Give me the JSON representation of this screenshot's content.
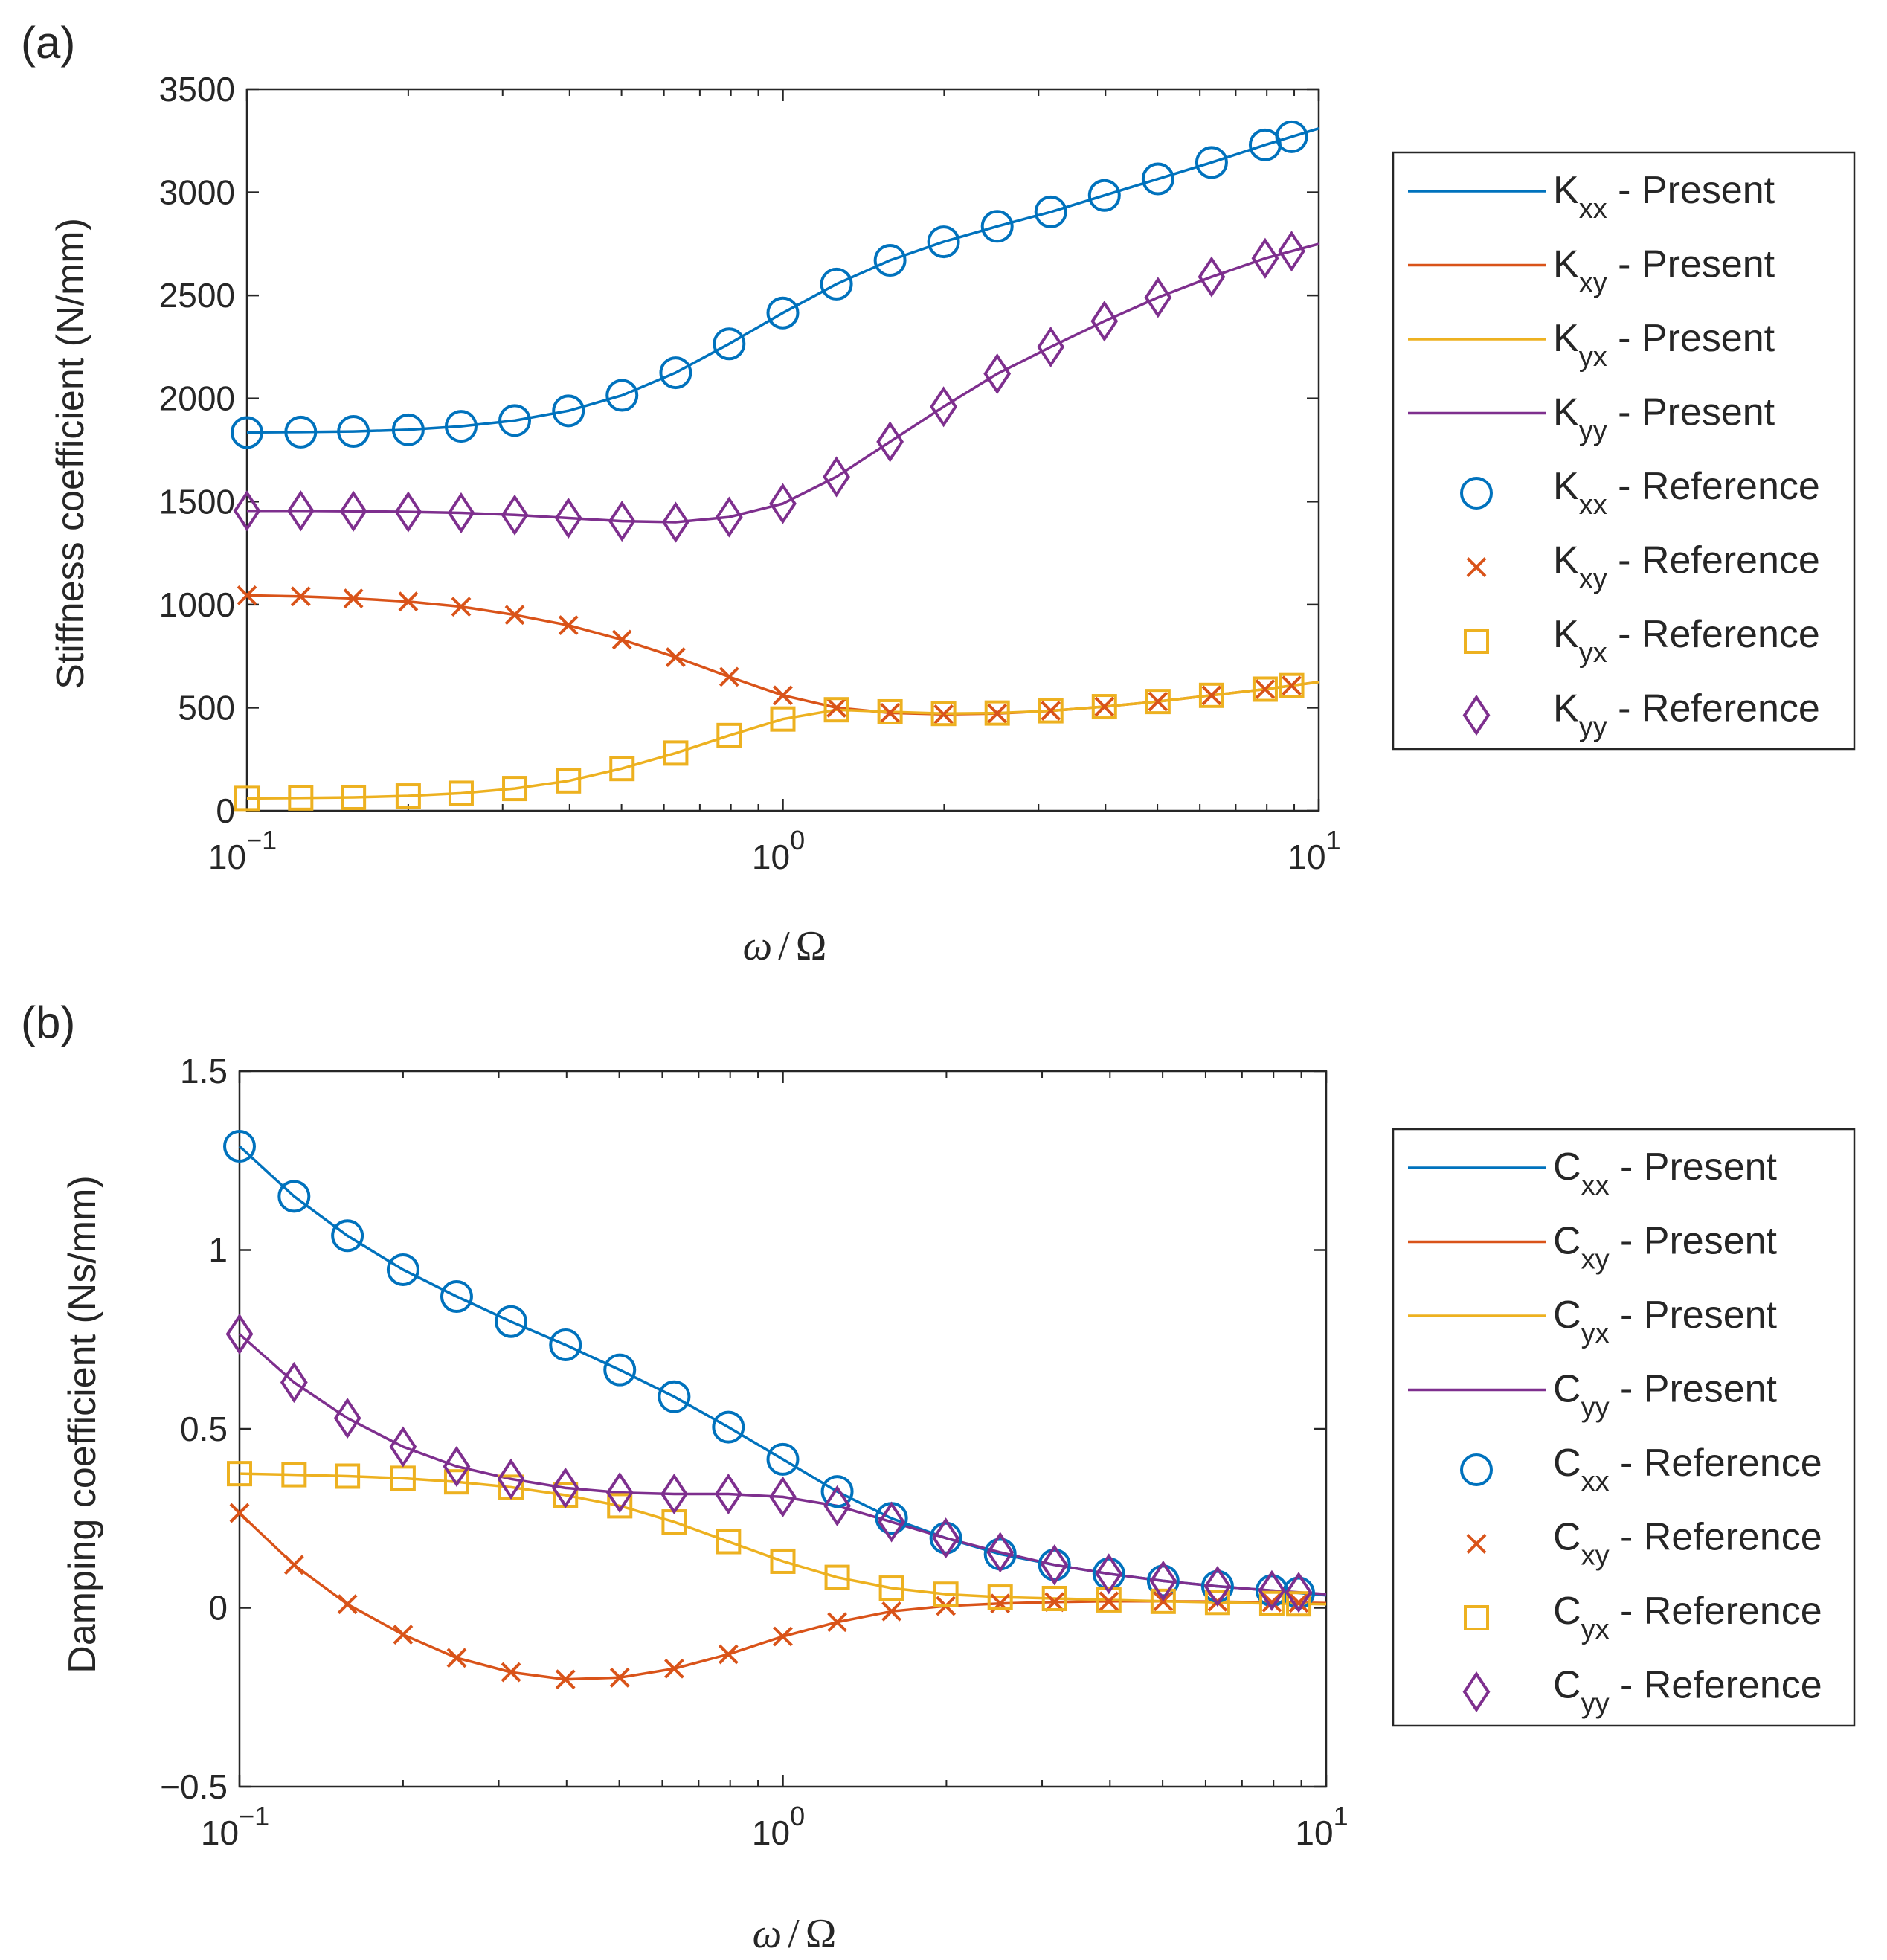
{
  "colors": {
    "xx": "#0072BD",
    "xy": "#D95319",
    "yx": "#EDB120",
    "yy": "#7E2F8E",
    "axis": "#262626"
  },
  "chart_data": [
    {
      "panel": "(a)",
      "type": "line",
      "xscale": "log",
      "xlim": [
        0.1,
        10
      ],
      "ylim": [
        0,
        3500
      ],
      "yticks": [
        "0",
        "500",
        "1000",
        "1500",
        "2000",
        "2500",
        "3000",
        "3500"
      ],
      "ylabel": "Stiffness coefficient (N/mm)",
      "xlabel": {
        "omega": "ω",
        "slash": "/",
        "Omega": "Ω"
      },
      "xticks": [
        {
          "base": "10",
          "exp": "−1"
        },
        {
          "base": "10",
          "exp": "0"
        },
        {
          "base": "10",
          "exp": "1"
        }
      ],
      "legend_position": "right",
      "legend": [
        {
          "symbol": "K",
          "sub": "xx",
          "suffix": " - Present"
        },
        {
          "symbol": "K",
          "sub": "xy",
          "suffix": " - Present"
        },
        {
          "symbol": "K",
          "sub": "yx",
          "suffix": " - Present"
        },
        {
          "symbol": "K",
          "sub": "yy",
          "suffix": " - Present"
        },
        {
          "symbol": "K",
          "sub": "xx",
          "suffix": " - Reference"
        },
        {
          "symbol": "K",
          "sub": "xy",
          "suffix": " - Reference"
        },
        {
          "symbol": "K",
          "sub": "yx",
          "suffix": " - Reference"
        },
        {
          "symbol": "K",
          "sub": "yy",
          "suffix": " - Reference"
        }
      ],
      "x": [
        0.1,
        0.126,
        0.158,
        0.2,
        0.251,
        0.316,
        0.398,
        0.501,
        0.631,
        0.794,
        1.0,
        1.259,
        1.585,
        1.995,
        2.512,
        3.162,
        3.981,
        5.012,
        6.31,
        7.943,
        10.0
      ],
      "series": [
        {
          "name": "Kxx",
          "marker": "circle",
          "values": [
            1835,
            1837,
            1840,
            1848,
            1865,
            1893,
            1940,
            2015,
            2125,
            2265,
            2415,
            2555,
            2670,
            2760,
            2835,
            2905,
            2985,
            3065,
            3145,
            3230,
            3310
          ]
        },
        {
          "name": "Kxy",
          "marker": "x",
          "values": [
            1045,
            1040,
            1030,
            1015,
            990,
            950,
            900,
            830,
            745,
            650,
            560,
            500,
            475,
            468,
            472,
            485,
            505,
            530,
            560,
            590,
            625
          ]
        },
        {
          "name": "Kyx",
          "marker": "square",
          "values": [
            60,
            62,
            65,
            72,
            85,
            108,
            145,
            205,
            280,
            365,
            445,
            490,
            480,
            472,
            474,
            485,
            505,
            530,
            560,
            590,
            625
          ]
        },
        {
          "name": "Kyy",
          "marker": "diamond",
          "values": [
            1455,
            1455,
            1453,
            1450,
            1445,
            1435,
            1420,
            1405,
            1400,
            1425,
            1490,
            1620,
            1790,
            1960,
            2120,
            2250,
            2375,
            2490,
            2590,
            2680,
            2750
          ]
        }
      ]
    },
    {
      "panel": "(b)",
      "type": "line",
      "xscale": "log",
      "xlim": [
        0.1,
        10
      ],
      "ylim": [
        -0.5,
        1.5
      ],
      "yticks": [
        "−0.5",
        "0",
        "0.5",
        "1",
        "1.5"
      ],
      "ylabel": "Damping coefficient (Ns/mm)",
      "xlabel": {
        "omega": "ω",
        "slash": "/",
        "Omega": "Ω"
      },
      "xticks": [
        {
          "base": "10",
          "exp": "−1"
        },
        {
          "base": "10",
          "exp": "0"
        },
        {
          "base": "10",
          "exp": "1"
        }
      ],
      "legend_position": "right",
      "legend": [
        {
          "symbol": "C",
          "sub": "xx",
          "suffix": " - Present"
        },
        {
          "symbol": "C",
          "sub": "xy",
          "suffix": " - Present"
        },
        {
          "symbol": "C",
          "sub": "yx",
          "suffix": " - Present"
        },
        {
          "symbol": "C",
          "sub": "yy",
          "suffix": " - Present"
        },
        {
          "symbol": "C",
          "sub": "xx",
          "suffix": " - Reference"
        },
        {
          "symbol": "C",
          "sub": "xy",
          "suffix": " - Reference"
        },
        {
          "symbol": "C",
          "sub": "yx",
          "suffix": " - Reference"
        },
        {
          "symbol": "C",
          "sub": "yy",
          "suffix": " - Reference"
        }
      ],
      "x": [
        0.1,
        0.126,
        0.158,
        0.2,
        0.251,
        0.316,
        0.398,
        0.501,
        0.631,
        0.794,
        1.0,
        1.259,
        1.585,
        1.995,
        2.512,
        3.162,
        3.981,
        5.012,
        6.31,
        7.943,
        10.0
      ],
      "series": [
        {
          "name": "Cxx",
          "marker": "circle",
          "values": [
            1.29,
            1.15,
            1.04,
            0.945,
            0.87,
            0.8,
            0.735,
            0.665,
            0.59,
            0.505,
            0.415,
            0.325,
            0.25,
            0.195,
            0.15,
            0.12,
            0.095,
            0.075,
            0.06,
            0.048,
            0.035
          ]
        },
        {
          "name": "Cxy",
          "marker": "x",
          "values": [
            0.265,
            0.12,
            0.01,
            -0.075,
            -0.14,
            -0.18,
            -0.2,
            -0.195,
            -0.17,
            -0.13,
            -0.08,
            -0.04,
            -0.01,
            0.005,
            0.012,
            0.016,
            0.018,
            0.018,
            0.017,
            0.015,
            0.013
          ]
        },
        {
          "name": "Cyx",
          "marker": "square",
          "values": [
            0.375,
            0.372,
            0.368,
            0.362,
            0.352,
            0.337,
            0.315,
            0.285,
            0.24,
            0.185,
            0.13,
            0.085,
            0.055,
            0.038,
            0.03,
            0.026,
            0.022,
            0.018,
            0.015,
            0.012,
            0.01
          ]
        },
        {
          "name": "Cyy",
          "marker": "diamond",
          "values": [
            0.765,
            0.63,
            0.53,
            0.45,
            0.395,
            0.36,
            0.335,
            0.322,
            0.318,
            0.318,
            0.31,
            0.285,
            0.24,
            0.195,
            0.155,
            0.12,
            0.095,
            0.075,
            0.06,
            0.048,
            0.038
          ]
        }
      ]
    }
  ]
}
